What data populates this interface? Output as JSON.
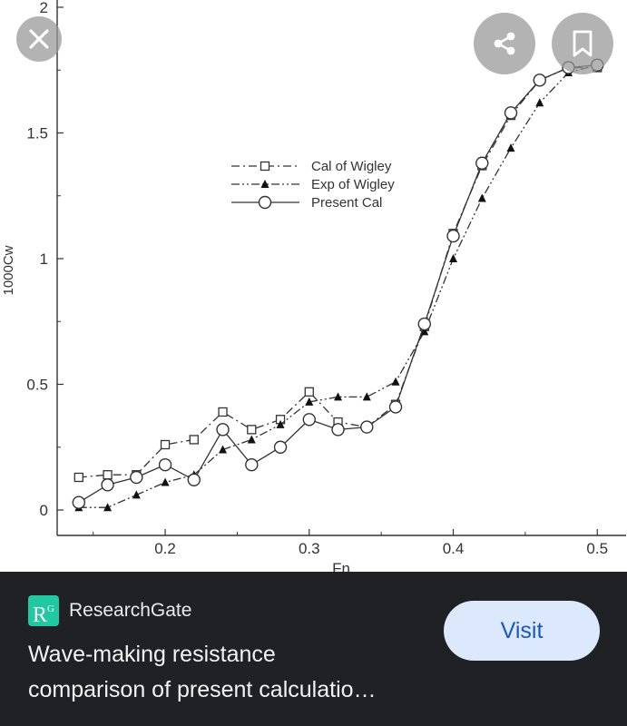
{
  "overlay": {
    "close_icon": "close-icon",
    "share_icon": "share-icon",
    "bookmark_icon": "bookmark-icon"
  },
  "chart_data": {
    "type": "line",
    "title": "",
    "xlabel": "Fn",
    "ylabel": "1000Cw",
    "xlim": [
      0.125,
      0.52
    ],
    "ylim": [
      0,
      2
    ],
    "x_ticks": [
      "0.2",
      "0.3",
      "0.4",
      "0.5"
    ],
    "y_ticks": [
      "0",
      "0.5",
      "1",
      "1.5",
      "2"
    ],
    "legend_position": "upper-left",
    "grid": false,
    "series": [
      {
        "name": "Cal of Wigley",
        "marker": "open-square",
        "line": "dash-dot",
        "x": [
          0.14,
          0.16,
          0.18,
          0.2,
          0.22,
          0.24,
          0.26,
          0.28,
          0.3,
          0.32,
          0.34,
          0.36,
          0.38,
          0.4,
          0.42,
          0.44,
          0.46,
          0.48,
          0.5
        ],
        "y": [
          0.13,
          0.14,
          0.14,
          0.26,
          0.28,
          0.39,
          0.32,
          0.36,
          0.47,
          0.35,
          0.33,
          0.42,
          0.73,
          1.1,
          1.37,
          1.57,
          1.71,
          1.76,
          1.76
        ]
      },
      {
        "name": "Exp of Wigley",
        "marker": "filled-triangle",
        "line": "dash-dot-dot",
        "x": [
          0.14,
          0.16,
          0.18,
          0.2,
          0.22,
          0.24,
          0.26,
          0.28,
          0.3,
          0.32,
          0.34,
          0.36,
          0.38,
          0.4,
          0.42,
          0.44,
          0.46,
          0.48,
          0.5
        ],
        "y": [
          0.01,
          0.01,
          0.06,
          0.11,
          0.14,
          0.24,
          0.28,
          0.34,
          0.43,
          0.45,
          0.45,
          0.51,
          0.71,
          1.0,
          1.24,
          1.44,
          1.62,
          1.74,
          1.77
        ]
      },
      {
        "name": "Present Cal",
        "marker": "open-circle",
        "line": "solid",
        "x": [
          0.14,
          0.16,
          0.18,
          0.2,
          0.22,
          0.24,
          0.26,
          0.28,
          0.3,
          0.32,
          0.34,
          0.36,
          0.38,
          0.4,
          0.42,
          0.44,
          0.46,
          0.48,
          0.5
        ],
        "y": [
          0.03,
          0.1,
          0.13,
          0.18,
          0.12,
          0.32,
          0.18,
          0.25,
          0.36,
          0.32,
          0.33,
          0.41,
          0.74,
          1.09,
          1.38,
          1.58,
          1.71,
          1.76,
          1.77
        ]
      }
    ]
  },
  "source": {
    "logo_text": "R",
    "logo_superscript": "G",
    "name": "ResearchGate"
  },
  "visit_label": "Visit",
  "caption_line1": "Wave-making resistance",
  "caption_line2": "comparison of present calculatio…"
}
